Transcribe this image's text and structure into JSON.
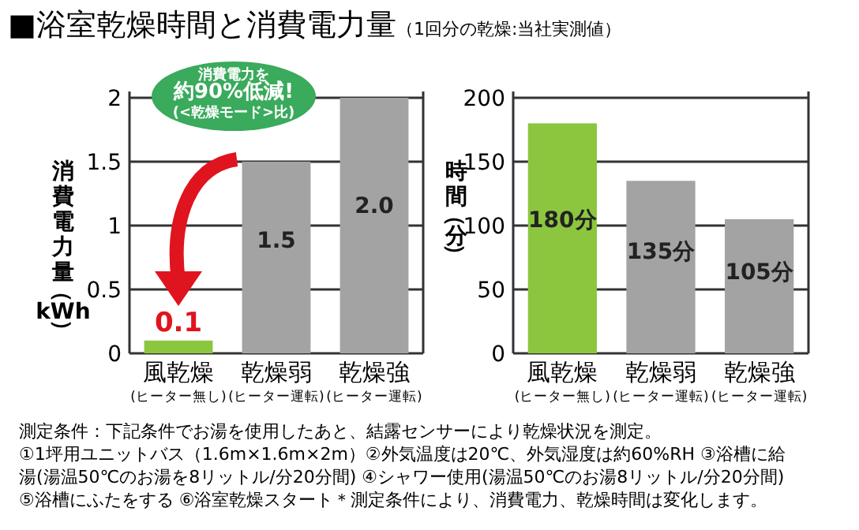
{
  "chart_data": [
    {
      "type": "bar",
      "title": "■浴室乾燥時間と消費電力量",
      "subtitle": "（1回分の乾燥:当社実測値）",
      "ylabel": "消費電力量（kWh）",
      "categories": [
        "風乾燥$_{(ヒーター無し)}$",
        "乾燥弱$_{(ヒーター運転)}$",
        "乾燥強$_{(ヒーター運転)}$"
      ],
      "values": [
        0.1,
        1.5,
        2.0
      ],
      "colors": [
        "#8cc63f",
        "#a3a3a3",
        "#a3a3a3"
      ],
      "value_labels": [
        "0.1",
        "1.5",
        "2.0"
      ],
      "ylim": [
        0,
        2
      ],
      "yticks": [
        0,
        0.5,
        1,
        1.5,
        2
      ],
      "grid": "y",
      "annotations": [
        "消費電力を約90%低減!",
        "(<乾燥モード>比)"
      ]
    },
    {
      "type": "bar",
      "ylabel": "時間（分）",
      "categories": [
        "風乾燥$_{(ヒーター無し)}$",
        "乾燥弱$_{(ヒーター運転)}$",
        "乾燥強$_{(ヒーター運転)}$"
      ],
      "values": [
        180,
        135,
        105
      ],
      "colors": [
        "#8cc63f",
        "#a3a3a3",
        "#a3a3a3"
      ],
      "value_labels": [
        "180分",
        "135分",
        "105分"
      ],
      "ylim": [
        0,
        200
      ],
      "yticks": [
        0,
        50,
        100,
        150,
        200
      ],
      "grid": "y",
      "annotations": [
        "測定条件：下記条件でお湯を使用したあと、結露センサーにより乾燥状況を測定。",
        "①1坪用ユニットバス（1.6m×1.6m×2m）②外気温度は20℃、外気湿度は約60%RH ③浴槽に給湯(湯温50℃のお湯を8リットル/分20分間) ④シャワー使用(湯温50℃のお湯8リットル/分20分間)⑤浴槽にふたをする ⑥浴室乾燥スタート＊測定条件により、消費電力、乾燥時間は変化します。"
      ]
    }
  ]
}
